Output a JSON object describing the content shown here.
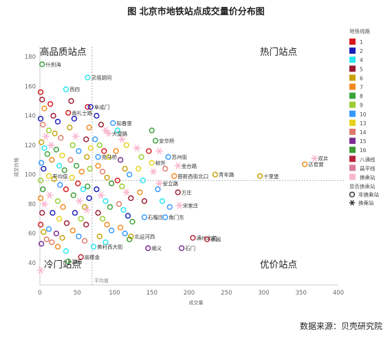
{
  "title": "图  北京市地铁站点成交量价分布图",
  "source": "数据来源：贝壳研究院",
  "chart_data": {
    "type": "scatter",
    "title": "图  北京市地铁站点成交量价分布图",
    "xlabel": "成交量",
    "ylabel": "成交价格",
    "xlim": [
      0,
      400
    ],
    "ylim": [
      25,
      185
    ],
    "xticks": [
      0,
      50,
      100,
      150,
      200,
      250,
      300,
      350,
      400
    ],
    "yticks": [
      40,
      60,
      80,
      100,
      120,
      140,
      160,
      180
    ],
    "avg_x": 70,
    "avg_y": 96,
    "avg_x_label": "平均值",
    "avg_y_label": "平均值",
    "grid": false,
    "quadrants": {
      "top_left": "高品质站点",
      "top_right": "热门站点",
      "bottom_left": "冷门站点",
      "bottom_right": "优价站点"
    },
    "legend": {
      "title": "地铁线路",
      "position": "right",
      "lines": [
        {
          "name": "1",
          "color": "#d7191c"
        },
        {
          "name": "2",
          "color": "#1a1fb8"
        },
        {
          "name": "4",
          "color": "#29e6f0"
        },
        {
          "name": "5",
          "color": "#9b1b30"
        },
        {
          "name": "6",
          "color": "#c9a20c"
        },
        {
          "name": "7",
          "color": "#f28a1f"
        },
        {
          "name": "8",
          "color": "#3aa33a"
        },
        {
          "name": "9",
          "color": "#9acd32"
        },
        {
          "name": "10",
          "color": "#3399ff"
        },
        {
          "name": "13",
          "color": "#e6d21e"
        },
        {
          "name": "14",
          "color": "#e07a6a"
        },
        {
          "name": "15",
          "color": "#7b2d91"
        },
        {
          "name": "16",
          "color": "#3d9b34"
        },
        {
          "name": "八通线",
          "color": "#b8243a"
        },
        {
          "name": "昌平线",
          "color": "#d87a9e"
        },
        {
          "name": "换乘站",
          "color": "#f9b6cf"
        }
      ],
      "type_title": "是否换乘站",
      "types": [
        {
          "name": "非换乘站",
          "marker": "circle"
        },
        {
          "name": "换乘站",
          "marker": "star"
        }
      ]
    },
    "labeled_points": [
      {
        "name": "双井",
        "x": 368,
        "y": 111,
        "line": "换乘站",
        "transfer": true
      },
      {
        "name": "达官营",
        "x": 355,
        "y": 107,
        "line": "7",
        "transfer": false
      },
      {
        "name": "十里堡",
        "x": 295,
        "y": 99,
        "line": "6",
        "transfer": false
      },
      {
        "name": "青年路",
        "x": 235,
        "y": 100,
        "line": "6",
        "transfer": false
      },
      {
        "name": "慈新西街北口",
        "x": 180,
        "y": 99,
        "line": "7",
        "transfer": false
      },
      {
        "name": "苏州街",
        "x": 172,
        "y": 112,
        "line": "10",
        "transfer": false
      },
      {
        "name": "金台路",
        "x": 185,
        "y": 106,
        "line": "换乘站",
        "transfer": true
      },
      {
        "name": "安华桥",
        "x": 155,
        "y": 123,
        "line": "8",
        "transfer": false
      },
      {
        "name": "柳芳",
        "x": 150,
        "y": 108,
        "line": "13",
        "transfer": false
      },
      {
        "name": "安立路",
        "x": 160,
        "y": 94,
        "line": "换乘站",
        "transfer": true
      },
      {
        "name": "方庄",
        "x": 185,
        "y": 88,
        "line": "5",
        "transfer": false
      },
      {
        "name": "宋家庄",
        "x": 187,
        "y": 79,
        "line": "换乘站",
        "transfer": true
      },
      {
        "name": "角门东",
        "x": 168,
        "y": 71,
        "line": "10",
        "transfer": false
      },
      {
        "name": "石榴庄",
        "x": 140,
        "y": 71,
        "line": "10",
        "transfer": false
      },
      {
        "name": "通州北苑",
        "x": 205,
        "y": 57,
        "line": "八通线",
        "transfer": false
      },
      {
        "name": "果园",
        "x": 224,
        "y": 56,
        "line": "八通线",
        "transfer": false
      },
      {
        "name": "石门",
        "x": 190,
        "y": 50,
        "line": "15",
        "transfer": false
      },
      {
        "name": "北运河西",
        "x": 122,
        "y": 58,
        "line": "6",
        "transfer": false
      },
      {
        "name": "顺义",
        "x": 145,
        "y": 50,
        "line": "15",
        "transfer": false
      },
      {
        "name": "黄村西大街",
        "x": 72,
        "y": 51,
        "line": "4",
        "transfer": false
      },
      {
        "name": "高楼金",
        "x": 55,
        "y": 44,
        "line": "八通线",
        "transfer": false
      },
      {
        "name": "瀛海",
        "x": 38,
        "y": 41,
        "line": "8",
        "transfer": false
      },
      {
        "name": "什刹海",
        "x": 3,
        "y": 175,
        "line": "8",
        "transfer": false
      },
      {
        "name": "西四",
        "x": 35,
        "y": 158,
        "line": "4",
        "transfer": false
      },
      {
        "name": "灵境胡同",
        "x": 64,
        "y": 166,
        "line": "4",
        "transfer": false
      },
      {
        "name": "南礼士路",
        "x": 38,
        "y": 142,
        "line": "1",
        "transfer": false
      },
      {
        "name": "阜成门",
        "x": 68,
        "y": 146,
        "line": "2",
        "transfer": false
      },
      {
        "name": "知春里",
        "x": 98,
        "y": 135,
        "line": "10",
        "transfer": false
      },
      {
        "name": "大望路",
        "x": 92,
        "y": 128,
        "line": "换乘站",
        "transfer": true
      },
      {
        "name": "亮马桥",
        "x": 78,
        "y": 112,
        "line": "10",
        "transfer": false
      },
      {
        "name": "平均值",
        "x": 12,
        "y": 99,
        "line": "13",
        "transfer": false
      }
    ],
    "unlabeled_points": [
      {
        "x": 1,
        "y": 156,
        "line": "1"
      },
      {
        "x": 3,
        "y": 151,
        "line": "5"
      },
      {
        "x": 6,
        "y": 145,
        "line": "7"
      },
      {
        "x": 1,
        "y": 138,
        "line": "2"
      },
      {
        "x": 4,
        "y": 134,
        "line": "14"
      },
      {
        "x": 8,
        "y": 126,
        "line": "换乘站"
      },
      {
        "x": 2,
        "y": 122,
        "line": "6"
      },
      {
        "x": 6,
        "y": 118,
        "line": "4"
      },
      {
        "x": 10,
        "y": 114,
        "line": "8"
      },
      {
        "x": 2,
        "y": 108,
        "line": "10"
      },
      {
        "x": 5,
        "y": 104,
        "line": "2"
      },
      {
        "x": 1,
        "y": 96,
        "line": "9"
      },
      {
        "x": 4,
        "y": 90,
        "line": "16"
      },
      {
        "x": 1,
        "y": 84,
        "line": "7"
      },
      {
        "x": 6,
        "y": 80,
        "line": "换乘站"
      },
      {
        "x": 3,
        "y": 74,
        "line": "5"
      },
      {
        "x": 1,
        "y": 66,
        "line": "1"
      },
      {
        "x": 5,
        "y": 61,
        "line": "6"
      },
      {
        "x": 9,
        "y": 56,
        "line": "14"
      },
      {
        "x": 2,
        "y": 53,
        "line": "15"
      },
      {
        "x": 1,
        "y": 35,
        "line": "换乘站"
      },
      {
        "x": 14,
        "y": 148,
        "line": "1"
      },
      {
        "x": 18,
        "y": 140,
        "line": "5"
      },
      {
        "x": 24,
        "y": 136,
        "line": "2"
      },
      {
        "x": 12,
        "y": 130,
        "line": "9"
      },
      {
        "x": 20,
        "y": 128,
        "line": "6"
      },
      {
        "x": 28,
        "y": 125,
        "line": "14"
      },
      {
        "x": 15,
        "y": 120,
        "line": "换乘站"
      },
      {
        "x": 22,
        "y": 117,
        "line": "8"
      },
      {
        "x": 30,
        "y": 113,
        "line": "13"
      },
      {
        "x": 16,
        "y": 110,
        "line": "7"
      },
      {
        "x": 26,
        "y": 106,
        "line": "4"
      },
      {
        "x": 33,
        "y": 103,
        "line": "16"
      },
      {
        "x": 19,
        "y": 97,
        "line": "6"
      },
      {
        "x": 27,
        "y": 93,
        "line": "10"
      },
      {
        "x": 35,
        "y": 90,
        "line": "1"
      },
      {
        "x": 13,
        "y": 86,
        "line": "换乘站"
      },
      {
        "x": 24,
        "y": 82,
        "line": "9"
      },
      {
        "x": 31,
        "y": 78,
        "line": "7"
      },
      {
        "x": 17,
        "y": 74,
        "line": "2"
      },
      {
        "x": 26,
        "y": 70,
        "line": "13"
      },
      {
        "x": 36,
        "y": 67,
        "line": "5"
      },
      {
        "x": 12,
        "y": 63,
        "line": "10"
      },
      {
        "x": 22,
        "y": 60,
        "line": "15"
      },
      {
        "x": 30,
        "y": 57,
        "line": "6"
      },
      {
        "x": 16,
        "y": 54,
        "line": "14"
      },
      {
        "x": 24,
        "y": 51,
        "line": "7"
      },
      {
        "x": 35,
        "y": 48,
        "line": "4"
      },
      {
        "x": 42,
        "y": 150,
        "line": "5"
      },
      {
        "x": 46,
        "y": 138,
        "line": "2"
      },
      {
        "x": 40,
        "y": 132,
        "line": "6"
      },
      {
        "x": 48,
        "y": 126,
        "line": "换乘站"
      },
      {
        "x": 44,
        "y": 120,
        "line": "9"
      },
      {
        "x": 52,
        "y": 116,
        "line": "10"
      },
      {
        "x": 41,
        "y": 110,
        "line": "14"
      },
      {
        "x": 49,
        "y": 106,
        "line": "8"
      },
      {
        "x": 56,
        "y": 102,
        "line": "7"
      },
      {
        "x": 43,
        "y": 98,
        "line": "13"
      },
      {
        "x": 51,
        "y": 94,
        "line": "1"
      },
      {
        "x": 58,
        "y": 90,
        "line": "4"
      },
      {
        "x": 45,
        "y": 86,
        "line": "16"
      },
      {
        "x": 53,
        "y": 82,
        "line": "换乘站"
      },
      {
        "x": 60,
        "y": 78,
        "line": "6"
      },
      {
        "x": 47,
        "y": 74,
        "line": "2"
      },
      {
        "x": 55,
        "y": 70,
        "line": "9"
      },
      {
        "x": 62,
        "y": 66,
        "line": "5"
      },
      {
        "x": 44,
        "y": 62,
        "line": "7"
      },
      {
        "x": 52,
        "y": 58,
        "line": "10"
      },
      {
        "x": 60,
        "y": 55,
        "line": "14"
      },
      {
        "x": 64,
        "y": 146,
        "line": "1"
      },
      {
        "x": 66,
        "y": 132,
        "line": "7"
      },
      {
        "x": 62,
        "y": 124,
        "line": "5"
      },
      {
        "x": 68,
        "y": 118,
        "line": "13"
      },
      {
        "x": 63,
        "y": 112,
        "line": "6"
      },
      {
        "x": 67,
        "y": 104,
        "line": "9"
      },
      {
        "x": 64,
        "y": 92,
        "line": "8"
      },
      {
        "x": 66,
        "y": 84,
        "line": "2"
      },
      {
        "x": 63,
        "y": 76,
        "line": "换乘站"
      },
      {
        "x": 76,
        "y": 140,
        "line": "2"
      },
      {
        "x": 82,
        "y": 134,
        "line": "5"
      },
      {
        "x": 88,
        "y": 130,
        "line": "换乘站"
      },
      {
        "x": 74,
        "y": 124,
        "line": "10"
      },
      {
        "x": 80,
        "y": 120,
        "line": "9"
      },
      {
        "x": 86,
        "y": 116,
        "line": "1"
      },
      {
        "x": 92,
        "y": 112,
        "line": "13"
      },
      {
        "x": 78,
        "y": 106,
        "line": "7"
      },
      {
        "x": 84,
        "y": 102,
        "line": "14"
      },
      {
        "x": 90,
        "y": 98,
        "line": "6"
      },
      {
        "x": 96,
        "y": 94,
        "line": "16"
      },
      {
        "x": 76,
        "y": 90,
        "line": "2"
      },
      {
        "x": 82,
        "y": 86,
        "line": "换乘站"
      },
      {
        "x": 88,
        "y": 82,
        "line": "4"
      },
      {
        "x": 94,
        "y": 78,
        "line": "8"
      },
      {
        "x": 78,
        "y": 74,
        "line": "5"
      },
      {
        "x": 84,
        "y": 70,
        "line": "9"
      },
      {
        "x": 90,
        "y": 66,
        "line": "7"
      },
      {
        "x": 96,
        "y": 62,
        "line": "10"
      },
      {
        "x": 80,
        "y": 58,
        "line": "6"
      },
      {
        "x": 88,
        "y": 54,
        "line": "4"
      },
      {
        "x": 104,
        "y": 130,
        "line": "4"
      },
      {
        "x": 110,
        "y": 124,
        "line": "换乘站"
      },
      {
        "x": 116,
        "y": 120,
        "line": "13"
      },
      {
        "x": 102,
        "y": 116,
        "line": "7"
      },
      {
        "x": 108,
        "y": 110,
        "line": "15"
      },
      {
        "x": 114,
        "y": 104,
        "line": "6"
      },
      {
        "x": 120,
        "y": 100,
        "line": "10"
      },
      {
        "x": 104,
        "y": 96,
        "line": "1"
      },
      {
        "x": 110,
        "y": 92,
        "line": "9"
      },
      {
        "x": 116,
        "y": 88,
        "line": "换乘站"
      },
      {
        "x": 122,
        "y": 84,
        "line": "5"
      },
      {
        "x": 106,
        "y": 80,
        "line": "14"
      },
      {
        "x": 112,
        "y": 76,
        "line": "4"
      },
      {
        "x": 118,
        "y": 72,
        "line": "2"
      },
      {
        "x": 124,
        "y": 68,
        "line": "8"
      },
      {
        "x": 108,
        "y": 64,
        "line": "7"
      },
      {
        "x": 114,
        "y": 60,
        "line": "10"
      },
      {
        "x": 120,
        "y": 56,
        "line": "16"
      },
      {
        "x": 130,
        "y": 118,
        "line": "换乘站"
      },
      {
        "x": 136,
        "y": 112,
        "line": "9"
      },
      {
        "x": 132,
        "y": 104,
        "line": "13"
      },
      {
        "x": 138,
        "y": 96,
        "line": "4"
      },
      {
        "x": 134,
        "y": 88,
        "line": "7"
      },
      {
        "x": 140,
        "y": 82,
        "line": "5"
      },
      {
        "x": 146,
        "y": 116,
        "line": "1"
      },
      {
        "x": 152,
        "y": 102,
        "line": "换乘站"
      },
      {
        "x": 158,
        "y": 90,
        "line": "10"
      },
      {
        "x": 164,
        "y": 82,
        "line": "4"
      },
      {
        "x": 168,
        "y": 104,
        "line": "14"
      },
      {
        "x": 174,
        "y": 78,
        "line": "10"
      },
      {
        "x": 160,
        "y": 116,
        "line": "换乘站"
      },
      {
        "x": 150,
        "y": 130,
        "line": "8"
      }
    ]
  }
}
